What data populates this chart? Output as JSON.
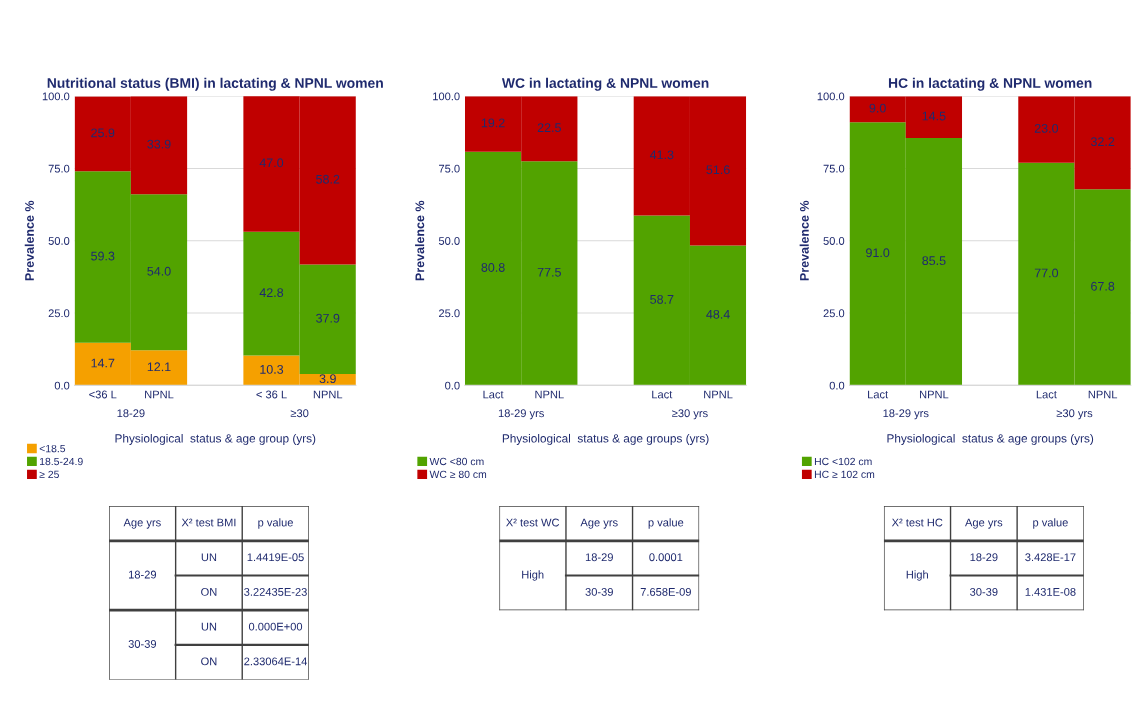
{
  "chart_data": [
    {
      "type": "bar",
      "stacked": true,
      "title": "Nutritional status (BMI) in lactating & NPNL women",
      "xlabel": "Physiological  status & age group (yrs)",
      "ylabel": "Prevalence %",
      "categories": [
        "<36 L",
        "NPNL",
        null,
        "< 36 L",
        "NPNL"
      ],
      "series": [
        {
          "name": "<18.5",
          "color": "#f5a000",
          "values": [
            14.7,
            12.1,
            null,
            10.3,
            3.9
          ],
          "value_labels": [
            "14.7",
            "12.1",
            null,
            "10.3",
            "3.9"
          ]
        },
        {
          "name": "18.5-24.9",
          "color": "#52a300",
          "values": [
            59.3,
            54.0,
            null,
            42.8,
            37.9
          ],
          "value_labels": [
            "59.3",
            "54.0",
            null,
            "42.8",
            "37.9"
          ]
        },
        {
          "name": "≥ 25",
          "color": "#c00000",
          "values": [
            25.9,
            33.9,
            null,
            47.0,
            58.2
          ],
          "value_labels": [
            "25.9",
            "33.9",
            null,
            "47.0",
            "58.2"
          ]
        }
      ],
      "ylim": [
        0,
        100
      ],
      "yticks": [
        {
          "value": 0,
          "label": "0.0"
        },
        {
          "value": 25,
          "label": "25.0"
        },
        {
          "value": 50,
          "label": "50.0"
        },
        {
          "value": 75,
          "label": "75.0"
        },
        {
          "value": 100,
          "label": "100.0"
        }
      ],
      "grid": "y",
      "legend": "bottom left",
      "annotations": [
        "18-29",
        "≥30",
        "Age yrs",
        "X² test BMI",
        "p value",
        "18-29",
        "UN",
        "1.4419E-05",
        "ON",
        "3.22435E-23",
        "30-39",
        "UN",
        "0.000E+00",
        "ON",
        "2.33064E-14"
      ]
    },
    {
      "type": "bar",
      "stacked": true,
      "title": "WC in lactating & NPNL women",
      "xlabel": "Physiological  status & age groups (yrs)",
      "ylabel": "Prevalence %",
      "categories": [
        "Lact",
        "NPNL",
        null,
        "Lact",
        "NPNL"
      ],
      "series": [
        {
          "name": "WC <80 cm",
          "color": "#52a300",
          "values": [
            80.8,
            77.5,
            null,
            58.7,
            48.4
          ],
          "value_labels": [
            "80.8",
            "77.5",
            null,
            "58.7",
            "48.4"
          ]
        },
        {
          "name": "WC ≥ 80 cm",
          "color": "#c00000",
          "values": [
            19.2,
            22.5,
            null,
            41.3,
            51.6
          ],
          "value_labels": [
            "19.2",
            "22.5",
            null,
            "41.3",
            "51.6"
          ]
        }
      ],
      "ylim": [
        0,
        100
      ],
      "yticks": [
        {
          "value": 0,
          "label": "0.0"
        },
        {
          "value": 25,
          "label": "25.0"
        },
        {
          "value": 50,
          "label": "50.0"
        },
        {
          "value": 75,
          "label": "75.0"
        },
        {
          "value": 100,
          "label": "100.0"
        }
      ],
      "grid": "y",
      "legend": "bottom left",
      "annotations": [
        "18-29 yrs",
        "≥30 yrs",
        "X² test WC",
        "Age yrs",
        "p value",
        "High",
        "18-29",
        "0.0001",
        "30-39",
        "7.658E-09"
      ]
    },
    {
      "type": "bar",
      "stacked": true,
      "title": "HC in lactating & NPNL women",
      "xlabel": "Physiological  status & age groups (yrs)",
      "ylabel": "Prevalence %",
      "categories": [
        "Lact",
        "NPNL",
        null,
        "Lact",
        "NPNL"
      ],
      "series": [
        {
          "name": "HC <102 cm",
          "color": "#52a300",
          "values": [
            91.0,
            85.5,
            null,
            77.0,
            67.8
          ],
          "value_labels": [
            "91.0",
            "85.5",
            null,
            "77.0",
            "67.8"
          ]
        },
        {
          "name": "HC ≥ 102 cm",
          "color": "#c00000",
          "values": [
            9.0,
            14.5,
            null,
            23.0,
            32.2
          ],
          "value_labels": [
            "9.0",
            "14.5",
            null,
            "23.0",
            "32.2"
          ]
        }
      ],
      "ylim": [
        0,
        100
      ],
      "yticks": [
        {
          "value": 0,
          "label": "0.0"
        },
        {
          "value": 25,
          "label": "25.0"
        },
        {
          "value": 50,
          "label": "50.0"
        },
        {
          "value": 75,
          "label": "75.0"
        },
        {
          "value": 100,
          "label": "100.0"
        }
      ],
      "grid": "y",
      "legend": "bottom left",
      "annotations": [
        "18-29 yrs",
        "≥30 yrs",
        "X² test HC",
        "Age yrs",
        "p value",
        "High",
        "18-29",
        "3.428E-17",
        "30-39",
        "1.431E-08"
      ]
    }
  ]
}
